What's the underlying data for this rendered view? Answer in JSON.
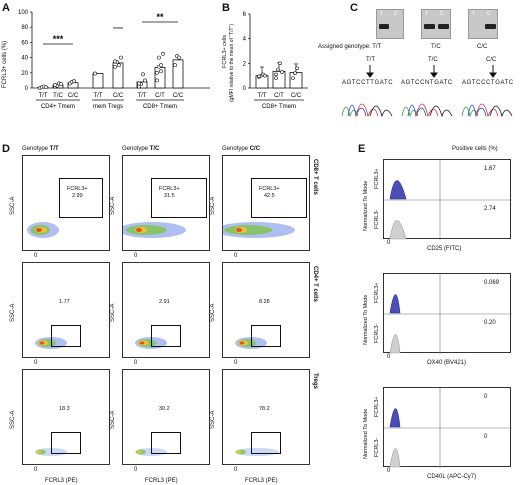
{
  "panels": {
    "A": {
      "letter": "A"
    },
    "B": {
      "letter": "B"
    },
    "C": {
      "letter": "C"
    },
    "D": {
      "letter": "D"
    },
    "E": {
      "letter": "E"
    }
  },
  "panelA": {
    "ylabel": "FCRL3+ cells (%)",
    "y_ticks": [
      "0",
      "20",
      "40",
      "60",
      "80",
      "100"
    ],
    "x_ticks": [
      "T/T",
      "T/C",
      "C/C",
      "T/T",
      "C/C",
      "T/T",
      "C/T",
      "C/C"
    ],
    "groups": [
      "CD4+ Tmem",
      "mem Tregs",
      "CD8+ Tmem"
    ],
    "sig1": "***",
    "sig2": "**"
  },
  "panelB": {
    "ylabel": "FCRL3+ cells",
    "ylabel2": "(gMFI relative to the mean of \"T/T\")",
    "y_ticks": [
      "0",
      "2",
      "4",
      "6"
    ],
    "x_ticks": [
      "T/T",
      "C/T",
      "C/C"
    ],
    "group": "CD8+ Tmem"
  },
  "panelC": {
    "assigned": "Assigned genotype: T/T",
    "genotypes": [
      "T/T",
      "T/C",
      "C/C"
    ],
    "gel_lanes": [
      "T",
      "C"
    ],
    "sequences": [
      "AGTCCTTGATC",
      "AGTCCNTGATC",
      "AGTCCCTGATC"
    ]
  },
  "panelD": {
    "col_prefix": "Genotype ",
    "cols": [
      "T/T",
      "T/C",
      "C/C"
    ],
    "rows": [
      "CD8+ T cells",
      "CD4+ T cells",
      "Tregs"
    ],
    "gate_name": "FCRL3+",
    "values": [
      [
        "2.99",
        "31.5",
        "42.5"
      ],
      [
        "1.77",
        "2.91",
        "8.28"
      ],
      [
        "18.3",
        "30.2",
        "78.2"
      ]
    ],
    "ylabel": "SSC-A",
    "xlabel": "FCRL3 (PE)",
    "zero": "0"
  },
  "panelE": {
    "header": "Positive cells (%)",
    "ylabel": "Normalized To Mode",
    "row_labels": [
      "FCRL3+",
      "FCRL3-"
    ],
    "markers": [
      "CD25 (FITC)",
      "OX40 (BV421)",
      "CD40L (APC-Cy7)"
    ],
    "values": [
      [
        "1.67",
        "2.74"
      ],
      [
        "0.069",
        "0.20"
      ],
      [
        "0",
        "0"
      ]
    ],
    "zero": "0"
  },
  "chart_data": [
    {
      "type": "bar",
      "title": "",
      "ylabel": "FCRL3+ cells (%)",
      "ylim": [
        0,
        100
      ],
      "categories": [
        "T/T",
        "T/C",
        "C/C",
        "T/T",
        "C/C",
        "T/T",
        "C/T",
        "C/C"
      ],
      "values": [
        1,
        4,
        7,
        19,
        33,
        8,
        27,
        37
      ],
      "points": [
        [
          0,
          1,
          2,
          1
        ],
        [
          2,
          3,
          6,
          5,
          4
        ],
        [
          6,
          8,
          9
        ],
        [
          19
        ],
        [
          28,
          34,
          30,
          40,
          35
        ],
        [
          2,
          5,
          18,
          10,
          6
        ],
        [
          10,
          28,
          22,
          45,
          20,
          40,
          30
        ],
        [
          30,
          42,
          40
        ]
      ],
      "cc_tregs_point": 79,
      "grid": false
    },
    {
      "type": "bar",
      "title": "",
      "ylabel": "FCRL3+ cells",
      "ylim": [
        0,
        6
      ],
      "categories": [
        "T/T",
        "C/T",
        "C/C"
      ],
      "values": [
        1.0,
        1.35,
        1.25
      ],
      "points": [
        [
          0.9,
          1.0,
          1.1,
          1.0,
          0.95
        ],
        [
          0.8,
          1.5,
          2.0,
          1.3,
          1.1
        ],
        [
          0.8,
          1.2,
          1.6
        ]
      ],
      "grid": false
    }
  ]
}
